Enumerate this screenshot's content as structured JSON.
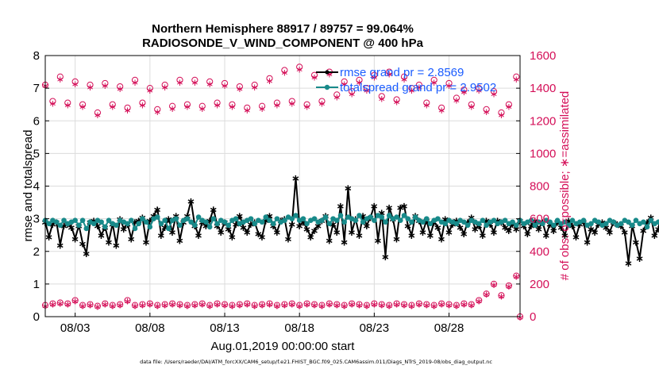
{
  "colors": {
    "rmse": "#000000",
    "spread": "#188a8a",
    "obs": "#d40f58",
    "legend_text": "#1a5cff",
    "grid": "#dcdcdc"
  },
  "chart_data": {
    "type": "line",
    "title": "Northern Hemisphere 88917 / 89757 = 99.064%",
    "subtitle": "RADIOSONDE_V_WIND_COMPONENT @ 400 hPa",
    "xlabel": "Aug.01,2019 00:00:00 start",
    "ylabel": "rmse and totalspread",
    "y2label": "# of obs: o=possible; ∗=assimilated",
    "footer": "data file: /Users/raeder/DAI/ATM_forcXX/CAM6_setup/f.e21.FHIST_BGC.f09_025.CAM6assim.011/Diags_NTrS_2019-08/obs_diag_output.nc",
    "xlim": [
      1,
      32.75
    ],
    "ylim": [
      0,
      8
    ],
    "y2lim": [
      0,
      1600
    ],
    "xticks": [
      3,
      8,
      13,
      18,
      23,
      28
    ],
    "xtick_labels": [
      "08/03",
      "08/08",
      "08/13",
      "08/18",
      "08/23",
      "08/28"
    ],
    "yticks": [
      0,
      1,
      2,
      3,
      4,
      5,
      6,
      7,
      8
    ],
    "y2ticks": [
      0,
      200,
      400,
      600,
      800,
      1000,
      1200,
      1400,
      1600
    ],
    "x_start_day": 1.0,
    "x_step_days": 0.25,
    "series": [
      {
        "name": "rmse grand pr = 2.8569",
        "values": [
          2.9,
          2.45,
          2.85,
          2.9,
          2.2,
          2.8,
          2.85,
          2.75,
          2.4,
          2.8,
          2.25,
          1.95,
          2.9,
          2.95,
          2.8,
          2.5,
          2.75,
          2.3,
          2.85,
          2.2,
          3.0,
          2.7,
          2.85,
          2.4,
          2.9,
          2.95,
          3.05,
          2.3,
          2.95,
          3.1,
          3.3,
          2.5,
          2.75,
          3.0,
          2.6,
          3.1,
          2.35,
          2.9,
          3.1,
          3.55,
          2.8,
          2.5,
          2.9,
          2.8,
          2.95,
          3.3,
          2.8,
          2.6,
          2.9,
          2.7,
          2.45,
          2.85,
          3.1,
          2.75,
          2.6,
          2.85,
          2.9,
          2.55,
          2.45,
          2.95,
          3.1,
          2.8,
          2.6,
          2.95,
          3.0,
          2.4,
          2.85,
          4.25,
          2.8,
          2.9,
          2.7,
          2.45,
          2.65,
          2.8,
          2.95,
          3.1,
          2.35,
          2.85,
          2.6,
          3.4,
          2.3,
          3.95,
          2.6,
          3.0,
          2.5,
          3.1,
          2.8,
          3.05,
          3.4,
          2.35,
          3.2,
          1.85,
          3.35,
          3.0,
          2.4,
          3.35,
          3.4,
          2.8,
          2.5,
          3.1,
          2.95,
          2.6,
          2.95,
          2.5,
          2.9,
          2.75,
          2.4,
          3.0,
          2.6,
          2.85,
          2.95,
          2.75,
          2.55,
          2.9,
          3.05,
          2.7,
          2.8,
          2.5,
          2.95,
          2.85,
          2.6,
          2.95,
          2.9,
          2.75,
          2.65,
          2.85,
          2.7,
          2.95,
          2.8,
          2.55,
          2.8,
          2.95,
          2.7,
          2.9,
          2.5,
          2.85,
          2.65,
          2.9,
          2.75,
          2.5,
          2.95,
          2.8,
          2.45,
          2.85,
          2.9,
          2.3,
          2.7,
          2.6,
          2.85,
          2.9,
          2.75,
          2.6,
          2.9,
          2.85,
          2.8,
          2.6,
          1.65,
          2.8,
          2.3,
          1.8,
          2.65,
          2.9,
          3.05,
          2.5,
          2.7,
          3.25,
          2.85,
          2.9,
          2.6,
          2.75,
          2.1,
          2.85,
          2.95,
          2.6,
          2.3,
          2.75,
          2.8,
          2.55,
          2.95,
          2.9,
          2.65,
          2.7,
          2.45,
          2.6,
          2.8,
          2.65,
          2.3,
          2.55,
          2.7,
          2.6,
          2.75,
          2.85,
          2.45,
          2.55,
          2.6,
          2.8,
          2.5,
          2.6,
          2.7,
          2.85,
          2.55,
          2.4,
          2.5,
          2.65,
          2.6,
          2.35,
          2.65,
          2.5,
          2.6,
          2.45,
          2.55,
          2.6,
          2.5,
          2.55,
          2.6,
          2.55,
          2.6,
          2.65,
          2.55,
          2.6,
          2.5,
          2.55
        ]
      },
      {
        "name": "totalspread grand pr = 2.9502",
        "values": [
          2.95,
          2.85,
          2.95,
          2.9,
          2.8,
          2.95,
          2.85,
          2.9,
          2.95,
          2.8,
          2.95,
          2.7,
          2.9,
          2.85,
          2.95,
          2.9,
          2.75,
          2.95,
          2.85,
          2.8,
          2.95,
          2.9,
          2.85,
          2.95,
          2.7,
          2.85,
          3.0,
          2.9,
          2.75,
          3.0,
          3.05,
          2.85,
          2.95,
          2.7,
          2.95,
          3.0,
          2.8,
          2.95,
          3.0,
          2.9,
          2.8,
          3.05,
          2.95,
          2.9,
          2.75,
          3.0,
          2.85,
          2.95,
          2.9,
          2.8,
          2.95,
          3.0,
          2.85,
          2.9,
          2.95,
          3.0,
          2.85,
          2.95,
          2.9,
          3.05,
          2.95,
          2.85,
          3.0,
          2.9,
          2.95,
          3.05,
          3.0,
          3.1,
          2.95,
          3.0,
          2.85,
          2.95,
          3.0,
          2.9,
          2.95,
          3.05,
          2.85,
          3.0,
          2.95,
          3.1,
          2.9,
          3.05,
          3.0,
          2.95,
          3.1,
          2.9,
          3.0,
          3.05,
          2.95,
          3.1,
          3.05,
          2.9,
          3.1,
          3.0,
          3.05,
          2.95,
          3.1,
          3.0,
          2.9,
          3.05,
          2.95,
          2.9,
          3.0,
          2.85,
          2.95,
          3.0,
          2.9,
          2.85,
          2.95,
          2.9,
          2.85,
          2.95,
          2.9,
          2.8,
          2.95,
          2.9,
          2.85,
          2.95,
          2.8,
          2.9,
          2.95,
          2.85,
          2.9,
          2.95,
          2.85,
          2.9,
          2.8,
          2.95,
          2.85,
          2.9,
          2.95,
          2.8,
          2.9,
          2.85,
          2.95,
          2.9,
          2.8,
          2.95,
          2.85,
          2.9,
          2.8,
          2.95,
          2.85,
          2.9,
          2.95,
          2.8,
          2.85,
          2.95,
          2.9,
          2.8,
          2.85,
          2.95,
          2.9,
          2.8,
          2.85,
          2.95,
          2.9,
          2.8,
          2.95,
          2.85,
          2.9,
          2.75,
          2.95,
          2.85,
          2.9,
          2.8,
          2.95,
          2.85,
          2.9,
          2.8,
          2.95,
          2.9,
          2.85,
          2.95,
          2.8,
          2.9,
          2.85,
          2.95,
          2.8,
          2.9,
          2.85,
          2.95,
          2.8,
          2.9,
          2.85,
          2.95,
          2.8,
          2.9,
          2.85,
          2.95,
          2.8,
          2.9,
          2.85,
          2.95,
          2.8,
          2.9,
          2.85,
          2.95,
          2.8,
          2.9,
          2.85,
          2.95,
          2.8,
          2.9,
          2.85,
          2.95,
          2.8,
          2.9,
          2.85,
          2.95,
          2.8,
          2.9,
          2.85,
          2.95,
          2.8,
          2.9,
          2.85,
          2.95,
          2.8,
          2.9,
          2.85,
          2.95,
          2.8,
          2.9,
          2.85,
          2.95,
          2.8,
          2.9,
          2.85,
          2.95,
          2.8,
          2.9
        ]
      },
      {
        "name": "obs possible (o)",
        "axis": "right",
        "x": [
          1,
          1.5,
          2,
          2.5,
          3,
          3.5,
          4,
          4.5,
          5,
          5.5,
          6,
          6.5,
          7,
          7.5,
          8,
          8.5,
          9,
          9.5,
          10,
          10.5,
          11,
          11.5,
          12,
          12.5,
          13,
          13.5,
          14,
          14.5,
          15,
          15.5,
          16,
          16.5,
          17,
          17.5,
          18,
          18.5,
          19,
          19.5,
          20,
          20.5,
          21,
          21.5,
          22,
          22.5,
          23,
          23.5,
          24,
          24.5,
          25,
          25.5,
          26,
          26.5,
          27,
          27.5,
          28,
          28.5,
          29,
          29.5,
          30,
          30.5,
          31,
          31.5,
          32,
          32.5
        ],
        "values": [
          1420,
          1320,
          1470,
          1310,
          1440,
          1300,
          1420,
          1250,
          1430,
          1300,
          1410,
          1280,
          1450,
          1310,
          1400,
          1270,
          1420,
          1290,
          1450,
          1300,
          1450,
          1290,
          1440,
          1310,
          1430,
          1300,
          1410,
          1280,
          1420,
          1290,
          1460,
          1310,
          1510,
          1320,
          1530,
          1300,
          1480,
          1320,
          1500,
          1360,
          1440,
          1380,
          1450,
          1400,
          1480,
          1350,
          1500,
          1330,
          1470,
          1400,
          1420,
          1310,
          1450,
          1280,
          1430,
          1340,
          1390,
          1300,
          1400,
          1270,
          1380,
          1250,
          1300,
          1470
        ]
      },
      {
        "name": "obs assimilated (∗)",
        "axis": "right",
        "x": [
          1,
          1.5,
          2,
          2.5,
          3,
          3.5,
          4,
          4.5,
          5,
          5.5,
          6,
          6.5,
          7,
          7.5,
          8,
          8.5,
          9,
          9.5,
          10,
          10.5,
          11,
          11.5,
          12,
          12.5,
          13,
          13.5,
          14,
          14.5,
          15,
          15.5,
          16,
          16.5,
          17,
          17.5,
          18,
          18.5,
          19,
          19.5,
          20,
          20.5,
          21,
          21.5,
          22,
          22.5,
          23,
          23.5,
          24,
          24.5,
          25,
          25.5,
          26,
          26.5,
          27,
          27.5,
          28,
          28.5,
          29,
          29.5,
          30,
          30.5,
          31,
          31.5,
          32,
          32.5
        ],
        "values": [
          1420,
          1310,
          1460,
          1300,
          1430,
          1290,
          1410,
          1240,
          1420,
          1290,
          1400,
          1270,
          1440,
          1300,
          1390,
          1260,
          1410,
          1280,
          1440,
          1290,
          1440,
          1280,
          1430,
          1300,
          1420,
          1290,
          1400,
          1270,
          1410,
          1280,
          1450,
          1300,
          1500,
          1310,
          1520,
          1290,
          1470,
          1310,
          1490,
          1350,
          1430,
          1370,
          1440,
          1390,
          1470,
          1340,
          1490,
          1320,
          1460,
          1390,
          1410,
          1300,
          1440,
          1270,
          1420,
          1330,
          1380,
          1290,
          1390,
          1260,
          1370,
          1240,
          1290,
          1460
        ]
      },
      {
        "name": "obs possible low (o)",
        "axis": "right",
        "x": [
          1,
          1.5,
          2,
          2.5,
          3,
          3.5,
          4,
          4.5,
          5,
          5.5,
          6,
          6.5,
          7,
          7.5,
          8,
          8.5,
          9,
          9.5,
          10,
          10.5,
          11,
          11.5,
          12,
          12.5,
          13,
          13.5,
          14,
          14.5,
          15,
          15.5,
          16,
          16.5,
          17,
          17.5,
          18,
          18.5,
          19,
          19.5,
          20,
          20.5,
          21,
          21.5,
          22,
          22.5,
          23,
          23.5,
          24,
          24.5,
          25,
          25.5,
          26,
          26.5,
          27,
          27.5,
          28,
          28.5,
          29,
          29.5,
          30,
          30.5,
          31,
          31.5,
          32,
          32.5,
          32.75
        ],
        "values": [
          70,
          80,
          85,
          80,
          100,
          70,
          75,
          65,
          80,
          70,
          75,
          100,
          70,
          75,
          80,
          70,
          75,
          80,
          75,
          70,
          75,
          80,
          70,
          80,
          75,
          70,
          75,
          80,
          70,
          75,
          80,
          70,
          75,
          80,
          70,
          80,
          75,
          70,
          80,
          75,
          70,
          80,
          75,
          70,
          80,
          75,
          70,
          80,
          75,
          70,
          80,
          75,
          70,
          80,
          75,
          70,
          80,
          75,
          100,
          140,
          200,
          130,
          190,
          250,
          0
        ]
      }
    ],
    "legend": [
      "rmse grand pr = 2.8569",
      "totalspread grand pr = 2.9502"
    ],
    "legend_position": "top-right",
    "grid": true
  }
}
